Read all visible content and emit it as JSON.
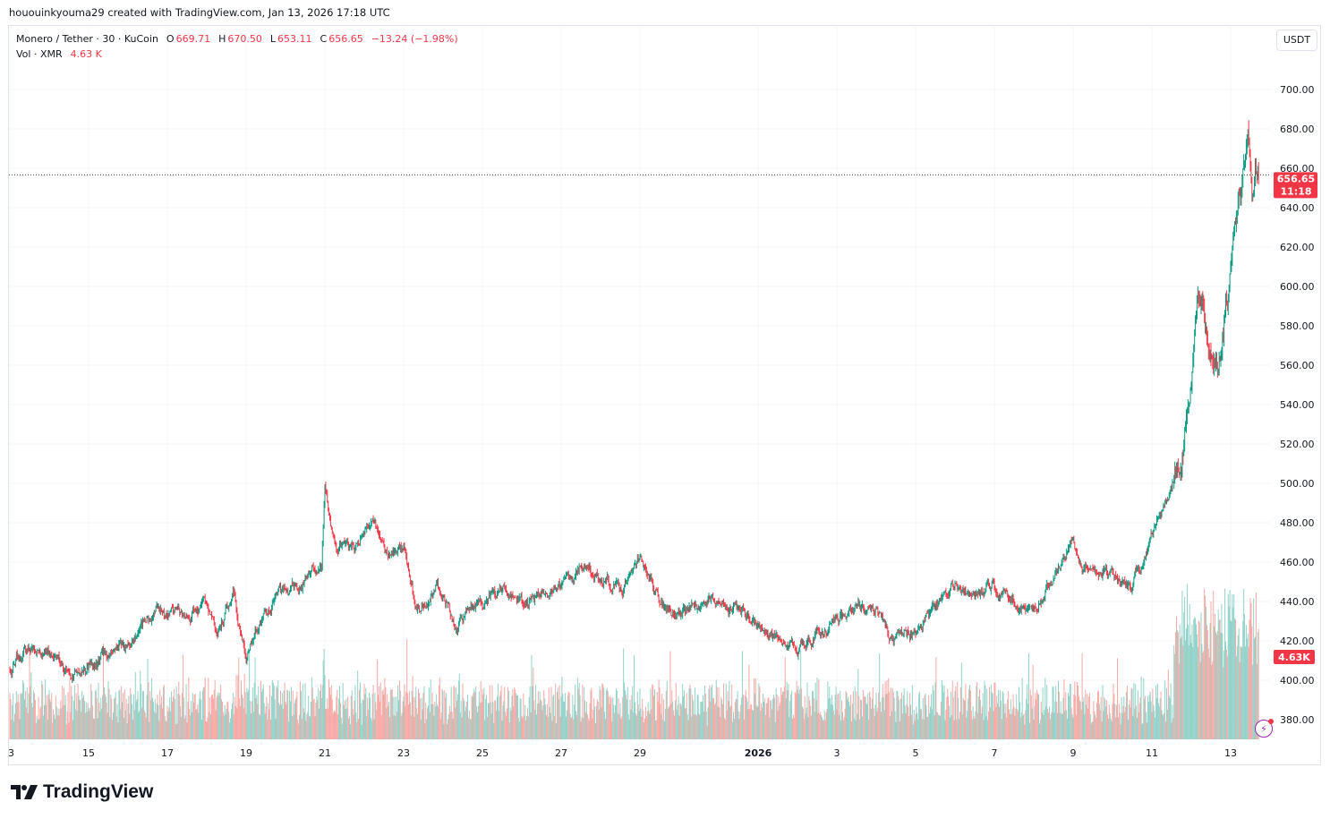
{
  "credit": "hououinkyouma29 created with TradingView.com, Jan 13, 2026 17:18 UTC",
  "legend": {
    "symbol": "Monero / Tether · 30 · KuCoin",
    "o_label": "O",
    "o": "669.71",
    "h_label": "H",
    "h": "670.50",
    "l_label": "L",
    "l": "653.11",
    "c_label": "C",
    "c": "656.65",
    "change": "−13.24 (−1.98%)",
    "vol_label": "Vol · XMR",
    "vol": "4.63 K"
  },
  "currency_button": "USDT",
  "last_price_label": "656.65",
  "countdown": "11:18",
  "volume_label": "4.63K",
  "logo_text": "TradingView",
  "colors": {
    "up": "#089981",
    "down": "#f23645",
    "vol_up": "#92d2c8",
    "vol_down": "#f7a9a6",
    "grid": "#f3f4f7"
  },
  "chart_data": {
    "type": "candlestick",
    "interval": "30",
    "y_ticks": [
      "380.00",
      "400.00",
      "420.00",
      "440.00",
      "460.00",
      "480.00",
      "500.00",
      "520.00",
      "540.00",
      "560.00",
      "580.00",
      "600.00",
      "620.00",
      "640.00",
      "660.00",
      "680.00",
      "700.00"
    ],
    "ylim": [
      370,
      707
    ],
    "x_ticks": [
      "3",
      "15",
      "17",
      "19",
      "21",
      "23",
      "25",
      "27",
      "29",
      "2026",
      "3",
      "5",
      "7",
      "9",
      "11",
      "13"
    ],
    "last_price": 656.65,
    "last_volume": 4630,
    "close_path": [
      [
        "2025-12-13T00:00",
        407
      ],
      [
        "2025-12-13T10:00",
        417
      ],
      [
        "2025-12-14T00:00",
        413
      ],
      [
        "2025-12-14T06:00",
        410
      ],
      [
        "2025-12-14T14:00",
        402
      ],
      [
        "2025-12-15T12:00",
        412
      ],
      [
        "2025-12-16T04:00",
        420
      ],
      [
        "2025-12-16T12:00",
        432
      ],
      [
        "2025-12-17T12:00",
        436
      ],
      [
        "2025-12-17T22:00",
        440
      ],
      [
        "2025-12-18T06:00",
        422
      ],
      [
        "2025-12-18T16:00",
        444
      ],
      [
        "2025-12-19T00:00",
        412
      ],
      [
        "2025-12-19T10:00",
        432
      ],
      [
        "2025-12-19T20:00",
        444
      ],
      [
        "2025-12-20T10:00",
        448
      ],
      [
        "2025-12-20T16:00",
        458
      ],
      [
        "2025-12-20T22:00",
        455
      ],
      [
        "2025-12-21T00:00",
        496
      ],
      [
        "2025-12-21T06:00",
        466
      ],
      [
        "2025-12-21T18:00",
        468
      ],
      [
        "2025-12-22T06:00",
        480
      ],
      [
        "2025-12-22T14:00",
        466
      ],
      [
        "2025-12-23T00:00",
        466
      ],
      [
        "2025-12-23T08:00",
        438
      ],
      [
        "2025-12-23T20:00",
        448
      ],
      [
        "2025-12-24T08:00",
        428
      ],
      [
        "2025-12-24T20:00",
        438
      ],
      [
        "2025-12-25T12:00",
        446
      ],
      [
        "2025-12-26T00:00",
        440
      ],
      [
        "2025-12-26T12:00",
        444
      ],
      [
        "2025-12-27T00:00",
        448
      ],
      [
        "2025-12-27T12:00",
        458
      ],
      [
        "2025-12-28T00:00",
        452
      ],
      [
        "2025-12-28T12:00",
        446
      ],
      [
        "2025-12-29T00:00",
        459
      ],
      [
        "2025-12-29T12:00",
        440
      ],
      [
        "2025-12-30T00:00",
        432
      ],
      [
        "2025-12-30T12:00",
        438
      ],
      [
        "2025-12-31T00:00",
        442
      ],
      [
        "2025-12-31T12:00",
        437
      ],
      [
        "2026-01-01T00:00",
        427
      ],
      [
        "2026-01-01T12:00",
        419
      ],
      [
        "2026-01-02T00:00",
        415
      ],
      [
        "2026-01-02T12:00",
        425
      ],
      [
        "2026-01-03T00:00",
        432
      ],
      [
        "2026-01-03T12:00",
        436
      ],
      [
        "2026-01-04T00:00",
        435
      ],
      [
        "2026-01-04T12:00",
        419
      ],
      [
        "2026-01-05T00:00",
        425
      ],
      [
        "2026-01-05T12:00",
        438
      ],
      [
        "2026-01-06T00:00",
        448
      ],
      [
        "2026-01-06T12:00",
        441
      ],
      [
        "2026-01-07T00:00",
        448
      ],
      [
        "2026-01-07T12:00",
        442
      ],
      [
        "2026-01-08T00:00",
        434
      ],
      [
        "2026-01-08T12:00",
        452
      ],
      [
        "2026-01-09T00:00",
        470
      ],
      [
        "2026-01-09T06:00",
        452
      ],
      [
        "2026-01-09T12:00",
        460
      ],
      [
        "2026-01-10T00:00",
        453
      ],
      [
        "2026-01-10T12:00",
        450
      ],
      [
        "2026-01-10T18:00",
        460
      ],
      [
        "2026-01-11T00:00",
        474
      ],
      [
        "2026-01-11T12:00",
        497
      ],
      [
        "2026-01-11T18:00",
        515
      ],
      [
        "2026-01-12T00:00",
        556
      ],
      [
        "2026-01-12T04:00",
        594
      ],
      [
        "2026-01-12T10:00",
        570
      ],
      [
        "2026-01-12T16:00",
        562
      ],
      [
        "2026-01-12T22:00",
        592
      ],
      [
        "2026-01-13T03:00",
        628
      ],
      [
        "2026-01-13T08:00",
        660
      ],
      [
        "2026-01-13T10:30",
        686
      ],
      [
        "2026-01-13T13:00",
        650
      ],
      [
        "2026-01-13T15:00",
        672
      ],
      [
        "2026-01-13T17:00",
        656.65
      ]
    ]
  }
}
